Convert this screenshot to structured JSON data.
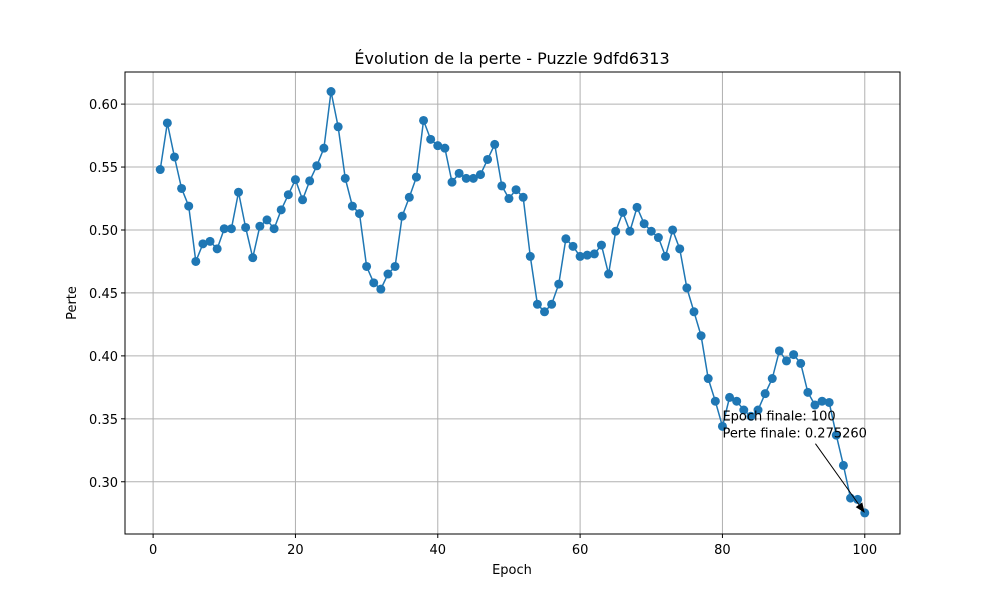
{
  "chart_data": {
    "type": "line",
    "title": "Évolution de la perte - Puzzle 9dfd6313",
    "xlabel": "Epoch",
    "ylabel": "Perte",
    "xlim": [
      -3.95,
      104.95
    ],
    "ylim": [
      0.2585,
      0.6255
    ],
    "xticks": [
      0,
      20,
      40,
      60,
      80,
      100
    ],
    "yticks": [
      0.3,
      0.35,
      0.4,
      0.45,
      0.5,
      0.55,
      0.6
    ],
    "xtick_labels": [
      "0",
      "20",
      "40",
      "60",
      "80",
      "100"
    ],
    "ytick_labels": [
      "0.30",
      "0.35",
      "0.40",
      "0.45",
      "0.50",
      "0.55",
      "0.60"
    ],
    "grid": true,
    "series_color": "#1f77b4",
    "marker": "circle",
    "x": [
      1,
      2,
      3,
      4,
      5,
      6,
      7,
      8,
      9,
      10,
      11,
      12,
      13,
      14,
      15,
      16,
      17,
      18,
      19,
      20,
      21,
      22,
      23,
      24,
      25,
      26,
      27,
      28,
      29,
      30,
      31,
      32,
      33,
      34,
      35,
      36,
      37,
      38,
      39,
      40,
      41,
      42,
      43,
      44,
      45,
      46,
      47,
      48,
      49,
      50,
      51,
      52,
      53,
      54,
      55,
      56,
      57,
      58,
      59,
      60,
      61,
      62,
      63,
      64,
      65,
      66,
      67,
      68,
      69,
      70,
      71,
      72,
      73,
      74,
      75,
      76,
      77,
      78,
      79,
      80,
      81,
      82,
      83,
      84,
      85,
      86,
      87,
      88,
      89,
      90,
      91,
      92,
      93,
      94,
      95,
      96,
      97,
      98,
      99,
      100
    ],
    "y": [
      0.548,
      0.585,
      0.558,
      0.533,
      0.519,
      0.475,
      0.489,
      0.491,
      0.485,
      0.501,
      0.501,
      0.53,
      0.502,
      0.478,
      0.503,
      0.508,
      0.501,
      0.516,
      0.528,
      0.54,
      0.524,
      0.539,
      0.551,
      0.565,
      0.61,
      0.582,
      0.541,
      0.519,
      0.513,
      0.471,
      0.458,
      0.453,
      0.465,
      0.471,
      0.511,
      0.526,
      0.542,
      0.587,
      0.572,
      0.567,
      0.565,
      0.538,
      0.545,
      0.541,
      0.541,
      0.544,
      0.556,
      0.568,
      0.535,
      0.525,
      0.532,
      0.526,
      0.479,
      0.441,
      0.435,
      0.441,
      0.457,
      0.493,
      0.487,
      0.479,
      0.48,
      0.481,
      0.488,
      0.465,
      0.499,
      0.514,
      0.499,
      0.518,
      0.505,
      0.499,
      0.494,
      0.479,
      0.5,
      0.485,
      0.454,
      0.435,
      0.416,
      0.382,
      0.364,
      0.344,
      0.367,
      0.364,
      0.357,
      0.352,
      0.357,
      0.37,
      0.382,
      0.404,
      0.396,
      0.401,
      0.394,
      0.371,
      0.361,
      0.364,
      0.363,
      0.337,
      0.313,
      0.287,
      0.286,
      0.27526
    ],
    "annotation": {
      "lines": [
        "Epoch finale: 100",
        "Perte finale: 0.275260"
      ],
      "point": [
        100,
        0.27526
      ],
      "text_at": [
        80,
        0.339
      ]
    }
  }
}
